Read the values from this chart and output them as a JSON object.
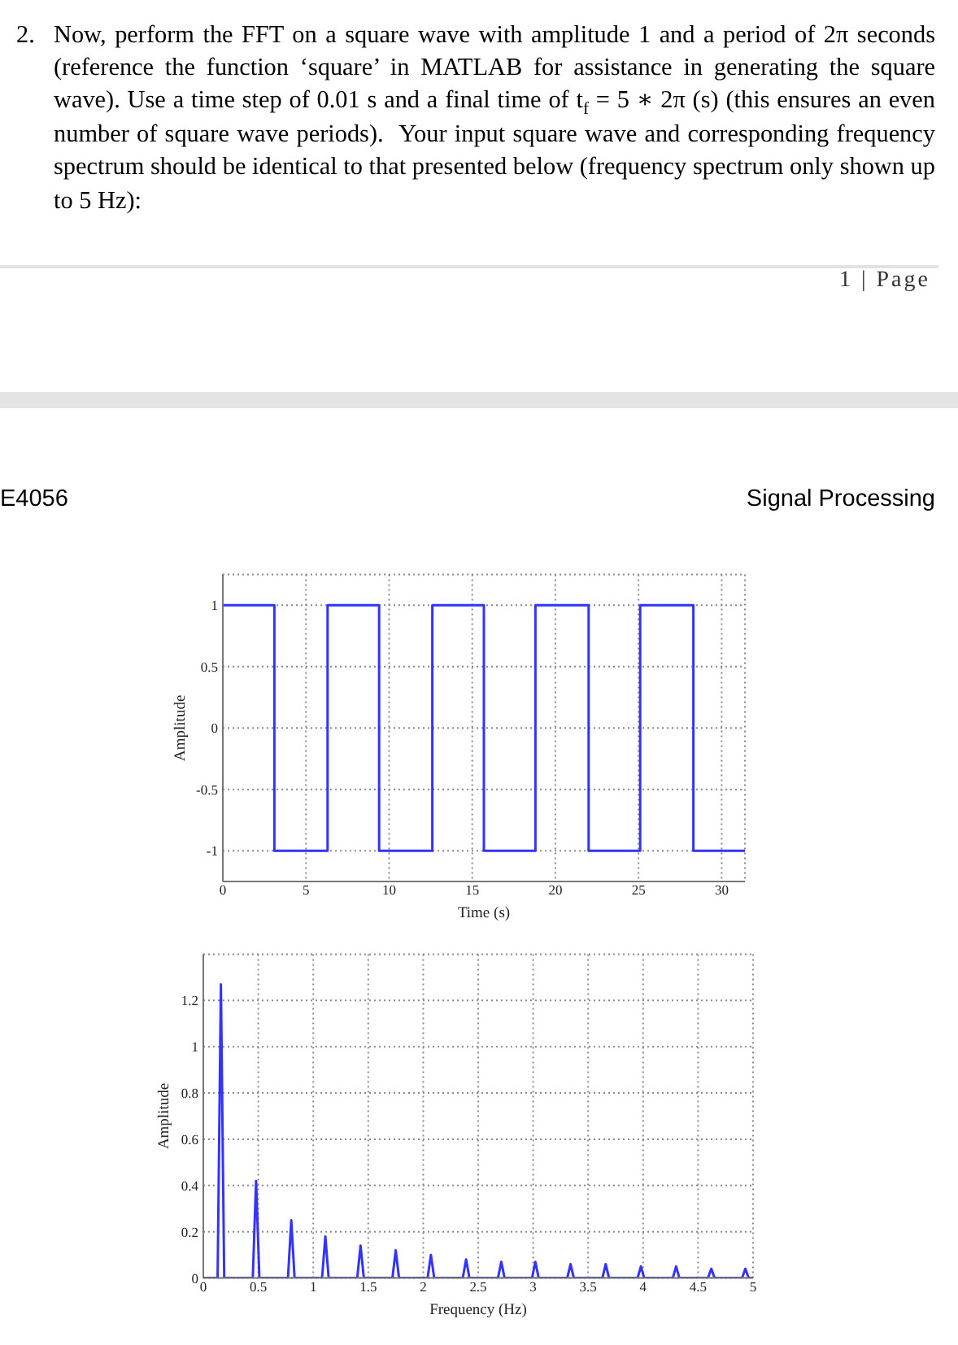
{
  "chart_data": [
    {
      "type": "step",
      "annotations": [
        "2.",
        "Now, perform the FFT on a square wave with amplitude 1 and a period of 2π seconds (reference the function ‘square’ in MATLAB for assistance in generating the square wave). Use a time step of 0.01 s and a final time of t$_{f}$ = 5 ∗ 2π (s) (this ensures an even number of square wave periods).  Your input square wave and corresponding frequency spectrum should be identical to that presented below (frequency spectrum only shown up to 5 Hz):",
        "1 | Page",
        "E4056",
        "Signal Processing"
      ],
      "x": [
        0,
        3.1,
        6.3,
        9.4,
        12.6,
        15.7,
        18.8,
        22.0,
        25.1,
        28.3,
        31.4
      ],
      "values": [
        1,
        -1,
        1,
        -1,
        1,
        -1,
        1,
        -1,
        1,
        -1,
        -1
      ],
      "color": "#3333ff",
      "xlabel": "Time (s)",
      "ylabel": "Amplitude",
      "xlim": [
        0,
        31.4
      ],
      "xticks": [
        0,
        5,
        10,
        15,
        20,
        25,
        30
      ],
      "ylim": [
        -1.25,
        1.25
      ],
      "yticks": [
        -1,
        -0.5,
        0,
        0.5,
        1
      ],
      "grid": true,
      "marker": "none"
    },
    {
      "type": "line",
      "x": [
        0,
        0.13,
        0.16,
        0.19,
        0.45,
        0.48,
        0.51,
        0.77,
        0.8,
        0.83,
        1.08,
        1.11,
        1.14,
        1.4,
        1.43,
        1.46,
        1.72,
        1.75,
        1.78,
        2.04,
        2.07,
        2.1,
        2.36,
        2.39,
        2.42,
        2.68,
        2.71,
        2.74,
        2.99,
        3.02,
        3.05,
        3.31,
        3.34,
        3.37,
        3.63,
        3.66,
        3.69,
        3.95,
        3.98,
        4.01,
        4.27,
        4.3,
        4.33,
        4.59,
        4.62,
        4.65,
        4.9,
        4.93,
        4.96,
        5
      ],
      "values": [
        0,
        0,
        1.27,
        0,
        0,
        0.42,
        0,
        0,
        0.25,
        0,
        0,
        0.18,
        0,
        0,
        0.14,
        0,
        0,
        0.12,
        0,
        0,
        0.1,
        0,
        0,
        0.08,
        0,
        0,
        0.07,
        0,
        0,
        0.07,
        0,
        0,
        0.06,
        0,
        0,
        0.06,
        0,
        0,
        0.05,
        0,
        0,
        0.05,
        0,
        0,
        0.04,
        0,
        0,
        0.04,
        0,
        0
      ],
      "color": "#3333ff",
      "xlabel": "Frequency (Hz)",
      "ylabel": "Amplitude",
      "xlim": [
        0,
        5
      ],
      "xticks": [
        0,
        0.5,
        1,
        1.5,
        2,
        2.5,
        3,
        3.5,
        4,
        4.5,
        5
      ],
      "ylim": [
        0,
        1.4
      ],
      "yticks": [
        0,
        0.2,
        0.4,
        0.6,
        0.8,
        1,
        1.2
      ],
      "grid": true,
      "marker": "none"
    }
  ]
}
